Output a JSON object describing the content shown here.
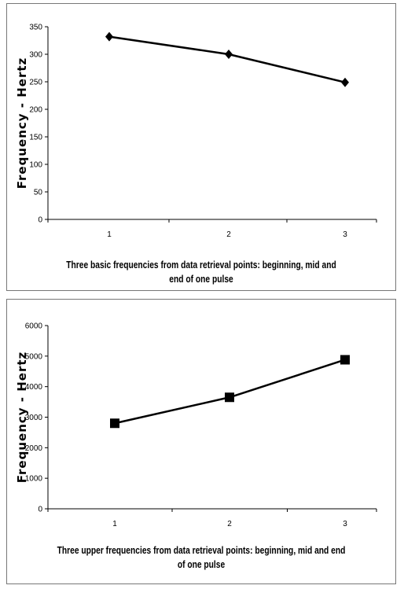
{
  "chart_data": [
    {
      "type": "line",
      "marker": "diamond",
      "x": [
        1,
        2,
        3
      ],
      "values": [
        332,
        300,
        249
      ],
      "ylim": [
        0,
        350
      ],
      "yticks": [
        0,
        50,
        100,
        150,
        200,
        250,
        300,
        350
      ],
      "ytick_labels": [
        "0",
        "50",
        "100",
        "150",
        "200",
        "250",
        "300",
        "350"
      ],
      "xtick_labels": [
        "1",
        "2",
        "3"
      ],
      "ylabel": "Frequency - Hertz",
      "xlabel_lines": [
        "Three basic frequencies from data retrieval points: beginning, mid and",
        "end of one pulse"
      ],
      "grid": false,
      "line_color": "#000000"
    },
    {
      "type": "line",
      "marker": "square",
      "x": [
        1,
        2,
        3
      ],
      "values": [
        2800,
        3650,
        4880
      ],
      "ylim": [
        0,
        6000
      ],
      "yticks": [
        0,
        1000,
        2000,
        3000,
        4000,
        5000,
        6000
      ],
      "ytick_labels": [
        "0",
        "1000",
        "2000",
        "3000",
        "4000",
        "5000",
        "6000"
      ],
      "xtick_labels": [
        "1",
        "2",
        "3"
      ],
      "ylabel": "Frequency - Hertz",
      "xlabel_lines": [
        "Three upper frequencies from data retrieval points: beginning, mid and end",
        "of one pulse"
      ],
      "grid": false,
      "line_color": "#000000"
    }
  ]
}
